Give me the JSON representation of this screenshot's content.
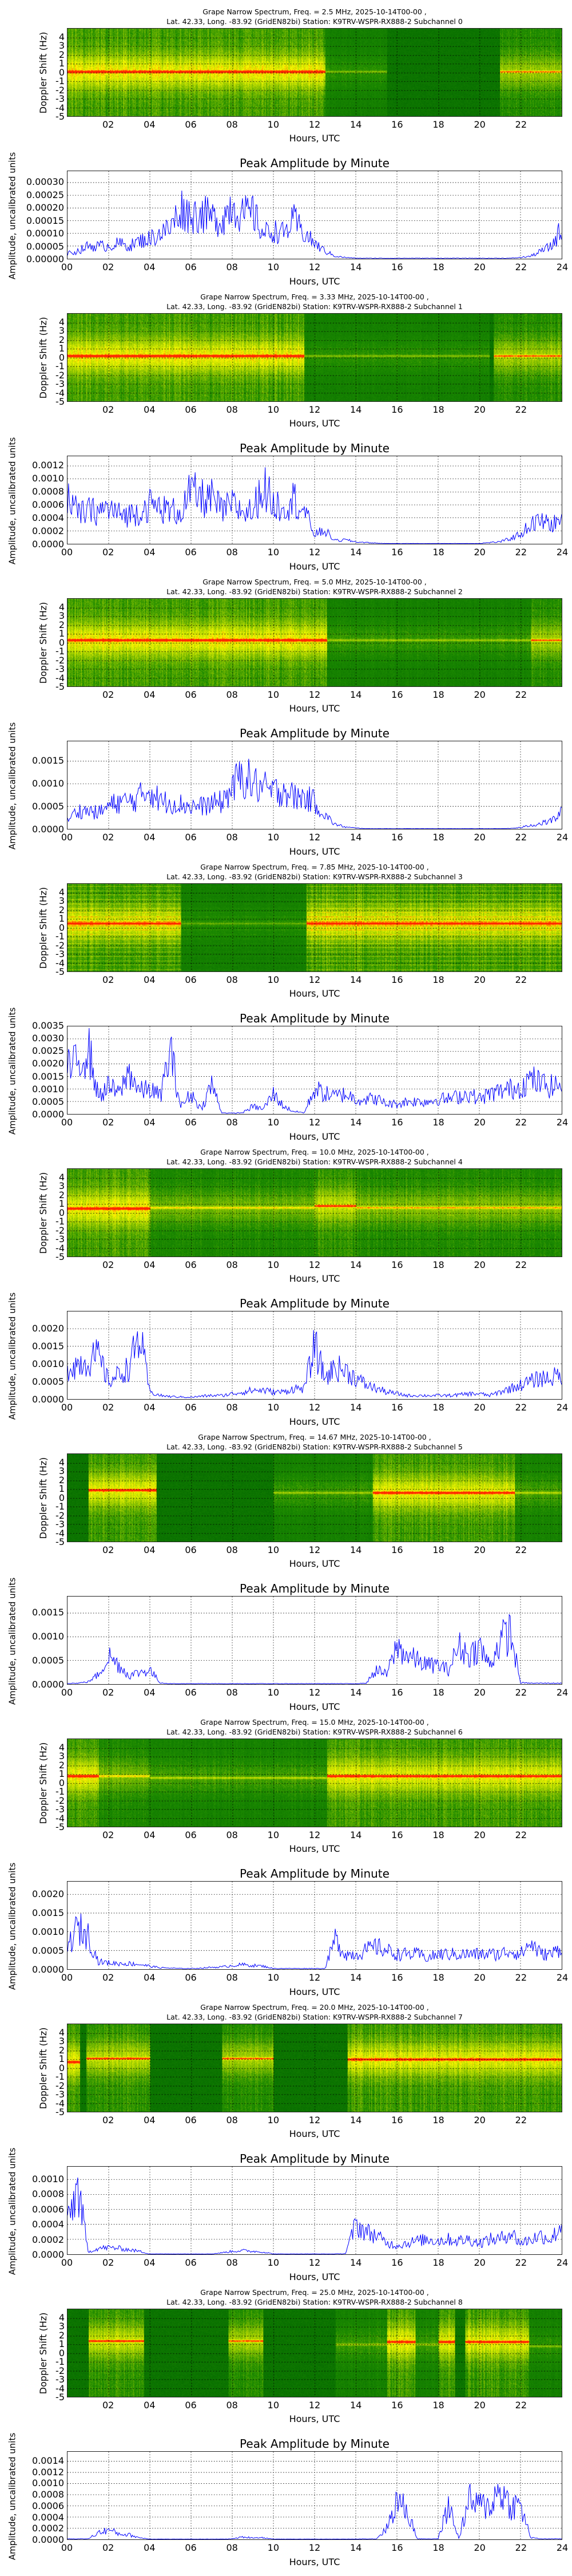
{
  "shared": {
    "xlabel": "Hours, UTC",
    "spec_ylabel": "Doppler Shift (Hz)",
    "amp_title": "Peak Amplitude by Minute",
    "amp_ylabel": "Amplitude, uncalibrated units",
    "spec_xticks": [
      "02",
      "04",
      "06",
      "08",
      "10",
      "12",
      "14",
      "16",
      "18",
      "20",
      "22"
    ],
    "amp_xticks": [
      "00",
      "02",
      "04",
      "06",
      "08",
      "10",
      "12",
      "14",
      "16",
      "18",
      "20",
      "22",
      "24"
    ],
    "spec_yticks": [
      "4",
      "3",
      "2",
      "1",
      "0",
      "-1",
      "-2",
      "-3",
      "-4",
      "-5"
    ],
    "line_color": "#0000ff"
  },
  "chart_data": [
    {
      "type": "heatmap+line",
      "title": "Grape Narrow Spectrum, Freq. = 2.5 MHz, 2025-10-14T00-00 ,",
      "subtitle": "Lat.  42.33, Long. -83.92 (GridEN82bi) Station: K9TRV-WSPR-RX888-2 Subchannel 0",
      "spectrogram": {
        "xlim": [
          0,
          24
        ],
        "ylim": [
          -5,
          5
        ],
        "segments": [
          [
            0,
            12.5,
            0.1,
            1.0
          ],
          [
            12.5,
            15.5,
            0.1,
            0.35
          ],
          [
            21,
            24,
            0.1,
            0.7
          ]
        ]
      },
      "amplitude": {
        "xlim": [
          0,
          24
        ],
        "ylim": [
          0,
          0.000345
        ],
        "yticks": [
          "0.00000",
          "0.00005",
          "0.00010",
          "0.00015",
          "0.00020",
          "0.00025",
          "0.00030"
        ],
        "ytick_values": [
          0,
          5e-05,
          0.0001,
          0.00015,
          0.0002,
          0.00025,
          0.0003
        ],
        "values": [
          2e-05,
          3e-05,
          5e-05,
          5e-05,
          5e-05,
          6e-05,
          5e-05,
          7e-05,
          8e-05,
          0.0001,
          0.00012,
          0.0002,
          0.00017,
          0.00018,
          0.00016,
          0.00015,
          0.00022,
          0.00017,
          0.00018,
          0.0001,
          0.00011,
          0.0001,
          0.00015,
          0.0001,
          6e-05,
          3e-05,
          1e-05,
          5e-06,
          2e-06,
          2e-06,
          2e-06,
          2e-06,
          2e-06,
          2e-06,
          2e-06,
          2e-06,
          2e-06,
          2e-06,
          2e-06,
          2e-06,
          2e-06,
          2e-06,
          2e-06,
          2e-06,
          5e-06,
          1e-05,
          3e-05,
          5e-05,
          0.00012
        ]
      }
    },
    {
      "type": "heatmap+line",
      "title": "Grape Narrow Spectrum, Freq. = 3.33 MHz, 2025-10-14T00-00 ,",
      "subtitle": "Lat.  42.33, Long. -83.92 (GridEN82bi) Station: K9TRV-WSPR-RX888-2 Subchannel 1",
      "spectrogram": {
        "xlim": [
          0,
          24
        ],
        "ylim": [
          -5,
          5
        ],
        "segments": [
          [
            0,
            11.5,
            0.2,
            1.0
          ],
          [
            11.5,
            20.5,
            0.2,
            0.35
          ],
          [
            20.7,
            24,
            0.2,
            0.75
          ]
        ]
      },
      "amplitude": {
        "xlim": [
          0,
          24
        ],
        "ylim": [
          0,
          0.00135
        ],
        "yticks": [
          "0.0000",
          "0.0002",
          "0.0004",
          "0.0006",
          "0.0008",
          "0.0010",
          "0.0012"
        ],
        "ytick_values": [
          0,
          0.0002,
          0.0004,
          0.0006,
          0.0008,
          0.001,
          0.0012
        ],
        "values": [
          0.0008,
          0.00045,
          0.0005,
          0.0005,
          0.00055,
          0.00045,
          0.00045,
          0.0005,
          0.0006,
          0.00055,
          0.0005,
          0.0005,
          0.0008,
          0.0007,
          0.0007,
          0.0005,
          0.0006,
          0.0005,
          0.0005,
          0.0009,
          0.0006,
          0.0006,
          0.0007,
          0.0005,
          0.00015,
          0.0002,
          5e-05,
          6e-05,
          3e-05,
          2e-05,
          1e-05,
          5e-06,
          5e-06,
          5e-06,
          5e-06,
          5e-06,
          5e-06,
          5e-06,
          5e-06,
          5e-06,
          5e-06,
          2e-05,
          3e-05,
          8e-05,
          0.00015,
          0.0003,
          0.00035,
          0.0003,
          0.00035
        ]
      }
    },
    {
      "type": "heatmap+line",
      "title": "Grape Narrow Spectrum, Freq. = 5.0 MHz, 2025-10-14T00-00 ,",
      "subtitle": "Lat.  42.33, Long. -83.92 (GridEN82bi) Station: K9TRV-WSPR-RX888-2 Subchannel 2",
      "spectrogram": {
        "xlim": [
          0,
          24
        ],
        "ylim": [
          -5,
          5
        ],
        "segments": [
          [
            0,
            12.6,
            0.3,
            1.0
          ],
          [
            12.6,
            22.5,
            0.3,
            0.4
          ],
          [
            22.5,
            24,
            0.3,
            0.75
          ]
        ]
      },
      "amplitude": {
        "xlim": [
          0,
          24
        ],
        "ylim": [
          0,
          0.00194
        ],
        "yticks": [
          "0.0000",
          "0.0005",
          "0.0010",
          "0.0015"
        ],
        "ytick_values": [
          0,
          0.0005,
          0.001,
          0.0015
        ],
        "values": [
          0.0002,
          0.0004,
          0.0004,
          0.00035,
          0.0005,
          0.0006,
          0.0006,
          0.0007,
          0.0009,
          0.0006,
          0.0006,
          0.00055,
          0.0005,
          0.0005,
          0.00055,
          0.0006,
          0.0009,
          0.0012,
          0.001,
          0.0009,
          0.0008,
          0.0009,
          0.0007,
          0.0007,
          0.0006,
          0.0003,
          0.0001,
          4e-05,
          2e-05,
          5e-06,
          5e-06,
          5e-06,
          5e-06,
          5e-06,
          5e-06,
          5e-06,
          5e-06,
          5e-06,
          5e-06,
          5e-06,
          5e-06,
          5e-06,
          5e-06,
          1e-05,
          3e-05,
          8e-05,
          0.00012,
          0.00018,
          0.00035
        ]
      }
    },
    {
      "type": "heatmap+line",
      "title": "Grape Narrow Spectrum, Freq. = 7.85 MHz, 2025-10-14T00-00 ,",
      "subtitle": "Lat.  42.33, Long. -83.92 (GridEN82bi) Station: K9TRV-WSPR-RX888-2 Subchannel 3",
      "spectrogram": {
        "xlim": [
          0,
          24
        ],
        "ylim": [
          -5,
          5
        ],
        "bands": true,
        "segments": [
          [
            0,
            5.5,
            0.5,
            0.95
          ],
          [
            5.5,
            11.6,
            0.5,
            0.3
          ],
          [
            11.6,
            24,
            0.5,
            0.95
          ]
        ]
      },
      "amplitude": {
        "xlim": [
          0,
          24
        ],
        "ylim": [
          0,
          0.0035
        ],
        "yticks": [
          "0.0000",
          "0.0005",
          "0.0010",
          "0.0015",
          "0.0020",
          "0.0025",
          "0.0030",
          "0.0035"
        ],
        "ytick_values": [
          0,
          0.0005,
          0.001,
          0.0015,
          0.002,
          0.0025,
          0.003,
          0.0035
        ],
        "values": [
          0.0018,
          0.002,
          0.0027,
          0.0007,
          0.0011,
          0.0008,
          0.0017,
          0.0009,
          0.001,
          0.0007,
          0.0025,
          0.0003,
          0.0008,
          0.0002,
          0.0012,
          5e-05,
          3e-05,
          5e-05,
          0.0003,
          0.0002,
          0.0008,
          0.0003,
          0.0001,
          5e-05,
          0.001,
          0.0008,
          0.0007,
          0.0008,
          0.0006,
          0.0006,
          0.0006,
          0.0004,
          0.0004,
          0.0005,
          0.0005,
          0.0005,
          0.0006,
          0.0006,
          0.0007,
          0.0008,
          0.0006,
          0.0008,
          0.0009,
          0.001,
          0.0011,
          0.0014,
          0.0012,
          0.0011,
          0.0012
        ]
      }
    },
    {
      "type": "heatmap+line",
      "title": "Grape Narrow Spectrum, Freq. = 10.0 MHz, 2025-10-14T00-00 ,",
      "subtitle": "Lat.  42.33, Long. -83.92 (GridEN82bi) Station: K9TRV-WSPR-RX888-2 Subchannel 4",
      "spectrogram": {
        "xlim": [
          0,
          24
        ],
        "ylim": [
          -5,
          5
        ],
        "segments": [
          [
            0,
            4,
            0.5,
            1.0
          ],
          [
            4,
            12,
            0.6,
            0.6
          ],
          [
            12,
            14,
            0.8,
            0.85
          ],
          [
            14,
            24,
            0.6,
            0.65
          ]
        ]
      },
      "amplitude": {
        "xlim": [
          0,
          24
        ],
        "ylim": [
          0,
          0.00249
        ],
        "yticks": [
          "0.0000",
          "0.0005",
          "0.0010",
          "0.0015",
          "0.0020"
        ],
        "ytick_values": [
          0,
          0.0005,
          0.001,
          0.0015,
          0.002
        ],
        "values": [
          0.0009,
          0.001,
          0.0011,
          0.0012,
          0.0005,
          0.0007,
          0.0009,
          0.0018,
          0.0002,
          0.0001,
          7e-05,
          6e-05,
          5e-05,
          8e-05,
          0.0001,
          0.0001,
          0.00015,
          0.0002,
          0.00025,
          0.00025,
          0.0002,
          0.0002,
          0.0003,
          0.0003,
          0.0015,
          0.0006,
          0.0009,
          0.0008,
          0.0006,
          0.0004,
          0.0003,
          0.0002,
          0.00015,
          0.0001,
          0.0001,
          0.0001,
          0.0001,
          0.0001,
          0.00012,
          0.00015,
          0.00015,
          0.0001,
          0.0002,
          0.0003,
          0.0004,
          0.0005,
          0.0006,
          0.0006,
          0.0007
        ]
      }
    },
    {
      "type": "heatmap+line",
      "title": "Grape Narrow Spectrum, Freq. = 14.67 MHz, 2025-10-14T00-00 ,",
      "subtitle": "Lat.  42.33, Long. -83.92 (GridEN82bi) Station: K9TRV-WSPR-RX888-2 Subchannel 5",
      "spectrogram": {
        "xlim": [
          0,
          24
        ],
        "ylim": [
          -5,
          5
        ],
        "segments": [
          [
            1,
            4.3,
            0.9,
            0.95
          ],
          [
            10,
            14.8,
            0.6,
            0.4
          ],
          [
            14.8,
            21.7,
            0.6,
            0.95
          ],
          [
            21.7,
            24,
            0.6,
            0.45
          ]
        ]
      },
      "amplitude": {
        "xlim": [
          0,
          24
        ],
        "ylim": [
          0,
          0.00185
        ],
        "yticks": [
          "0.0000",
          "0.0005",
          "0.0010",
          "0.0015"
        ],
        "ytick_values": [
          0,
          0.0005,
          0.001,
          0.0015
        ],
        "values": [
          2e-05,
          2e-05,
          5e-05,
          0.0002,
          0.0006,
          0.0004,
          0.00018,
          0.00025,
          0.0003,
          3e-05,
          1e-05,
          1e-05,
          1e-05,
          1e-05,
          1e-05,
          1e-05,
          1e-05,
          1e-05,
          1e-05,
          1e-05,
          1e-05,
          1e-05,
          1e-05,
          1e-05,
          1e-05,
          1e-05,
          1e-05,
          1e-05,
          1e-05,
          2e-05,
          0.0003,
          0.0002,
          0.0008,
          0.0006,
          0.0005,
          0.0004,
          0.0004,
          0.0003,
          0.0008,
          0.0006,
          0.0008,
          0.0004,
          0.0009,
          0.0011,
          3e-05,
          2e-05,
          2e-05,
          2e-05,
          2e-05
        ]
      }
    },
    {
      "type": "heatmap+line",
      "title": "Grape Narrow Spectrum, Freq. = 15.0 MHz, 2025-10-14T00-00 ,",
      "subtitle": "Lat.  42.33, Long. -83.92 (GridEN82bi) Station: K9TRV-WSPR-RX888-2 Subchannel 6",
      "spectrogram": {
        "xlim": [
          0,
          24
        ],
        "ylim": [
          -5,
          5
        ],
        "segments": [
          [
            0,
            1.5,
            0.8,
            1.0
          ],
          [
            1.5,
            4,
            0.8,
            0.6
          ],
          [
            4,
            12.6,
            0.6,
            0.45
          ],
          [
            12.6,
            24,
            0.8,
            0.95
          ]
        ]
      },
      "amplitude": {
        "xlim": [
          0,
          24
        ],
        "ylim": [
          0,
          0.00234
        ],
        "yticks": [
          "0.0000",
          "0.0005",
          "0.0010",
          "0.0015",
          "0.0020"
        ],
        "ytick_values": [
          0,
          0.0005,
          0.001,
          0.0015,
          0.002
        ],
        "values": [
          0.0006,
          0.0011,
          0.0009,
          0.0002,
          0.00017,
          0.00015,
          0.00015,
          0.00013,
          8e-05,
          4e-05,
          3e-05,
          2e-05,
          2e-05,
          3e-05,
          5e-05,
          6e-05,
          0.0001,
          0.00012,
          0.0001,
          8e-05,
          2e-05,
          2e-05,
          2e-05,
          2e-05,
          2e-05,
          2e-05,
          0.0008,
          0.0004,
          0.0004,
          0.0005,
          0.0006,
          0.0005,
          0.0004,
          0.0004,
          0.0004,
          0.0003,
          0.0004,
          0.0004,
          0.0004,
          0.0004,
          0.0004,
          0.0004,
          0.0004,
          0.0005,
          0.0004,
          0.0007,
          0.0004,
          0.0004,
          0.0006
        ]
      }
    },
    {
      "type": "heatmap+line",
      "title": "Grape Narrow Spectrum, Freq. = 20.0 MHz, 2025-10-14T00-00 ,",
      "subtitle": "Lat.  42.33, Long. -83.92 (GridEN82bi) Station: K9TRV-WSPR-RX888-2 Subchannel 7",
      "spectrogram": {
        "xlim": [
          0,
          24
        ],
        "ylim": [
          -5,
          5
        ],
        "segments": [
          [
            0,
            0.6,
            0.7,
            1.0
          ],
          [
            0.9,
            4,
            1.1,
            0.8
          ],
          [
            7.5,
            10,
            1.1,
            0.75
          ],
          [
            13.6,
            24,
            1.0,
            0.95
          ]
        ]
      },
      "amplitude": {
        "xlim": [
          0,
          24
        ],
        "ylim": [
          0,
          0.00117
        ],
        "yticks": [
          "0.0000",
          "0.0002",
          "0.0004",
          "0.0006",
          "0.0008",
          "0.0010"
        ],
        "ytick_values": [
          0,
          0.0002,
          0.0004,
          0.0006,
          0.0008,
          0.001
        ],
        "values": [
          0.0004,
          0.0009,
          3e-05,
          8e-05,
          9e-05,
          8e-05,
          6e-05,
          4e-05,
          5e-06,
          5e-06,
          5e-06,
          5e-06,
          5e-06,
          5e-06,
          5e-06,
          2e-05,
          4e-05,
          5e-05,
          4e-05,
          3e-05,
          5e-06,
          5e-06,
          5e-06,
          5e-06,
          5e-06,
          5e-06,
          5e-06,
          1e-05,
          0.0004,
          0.0003,
          0.00025,
          0.00015,
          0.00012,
          0.00015,
          0.00018,
          0.0002,
          0.00018,
          0.0002,
          0.00018,
          0.0002,
          0.00015,
          0.0002,
          0.0002,
          0.0003,
          0.00015,
          0.0002,
          0.00025,
          0.0002,
          0.0004
        ]
      }
    },
    {
      "type": "heatmap+line",
      "title": "Grape Narrow Spectrum, Freq. = 25.0 MHz, 2025-10-14T00-00 ,",
      "subtitle": "Lat.  42.33, Long. -83.92 (GridEN82bi) Station: K9TRV-WSPR-RX888-2 Subchannel 8",
      "spectrogram": {
        "xlim": [
          0,
          24
        ],
        "ylim": [
          -5,
          5
        ],
        "segments": [
          [
            1,
            3.7,
            1.4,
            0.85
          ],
          [
            7.8,
            9.5,
            1.4,
            0.75
          ],
          [
            13,
            15.5,
            1.0,
            0.4
          ],
          [
            15.5,
            16.9,
            1.3,
            0.95
          ],
          [
            16.9,
            18,
            1.0,
            0.4
          ],
          [
            18,
            18.8,
            1.3,
            0.95
          ],
          [
            19.3,
            22.4,
            1.3,
            0.95
          ],
          [
            22.4,
            24,
            0.8,
            0.35
          ]
        ]
      },
      "amplitude": {
        "xlim": [
          0,
          24
        ],
        "ylim": [
          0,
          0.00157
        ],
        "yticks": [
          "0.0000",
          "0.0002",
          "0.0004",
          "0.0006",
          "0.0008",
          "0.0010",
          "0.0012",
          "0.0014"
        ],
        "ytick_values": [
          0,
          0.0002,
          0.0004,
          0.0006,
          0.0008,
          0.001,
          0.0012,
          0.0014
        ],
        "values": [
          1e-05,
          1e-05,
          1e-05,
          0.00012,
          0.00017,
          0.0001,
          8e-05,
          3e-05,
          5e-06,
          5e-06,
          5e-06,
          5e-06,
          5e-06,
          5e-06,
          5e-06,
          5e-06,
          1e-05,
          4e-05,
          3e-05,
          3e-05,
          5e-06,
          5e-06,
          5e-06,
          5e-06,
          5e-06,
          5e-06,
          5e-06,
          5e-06,
          5e-06,
          1e-05,
          1e-05,
          0.0002,
          0.0007,
          0.0005,
          1e-05,
          1e-05,
          1e-05,
          0.0006,
          2e-05,
          0.0007,
          0.0006,
          0.0006,
          0.0009,
          0.0006,
          0.0006,
          3e-05,
          1e-05,
          1e-05,
          1e-05
        ]
      }
    }
  ]
}
